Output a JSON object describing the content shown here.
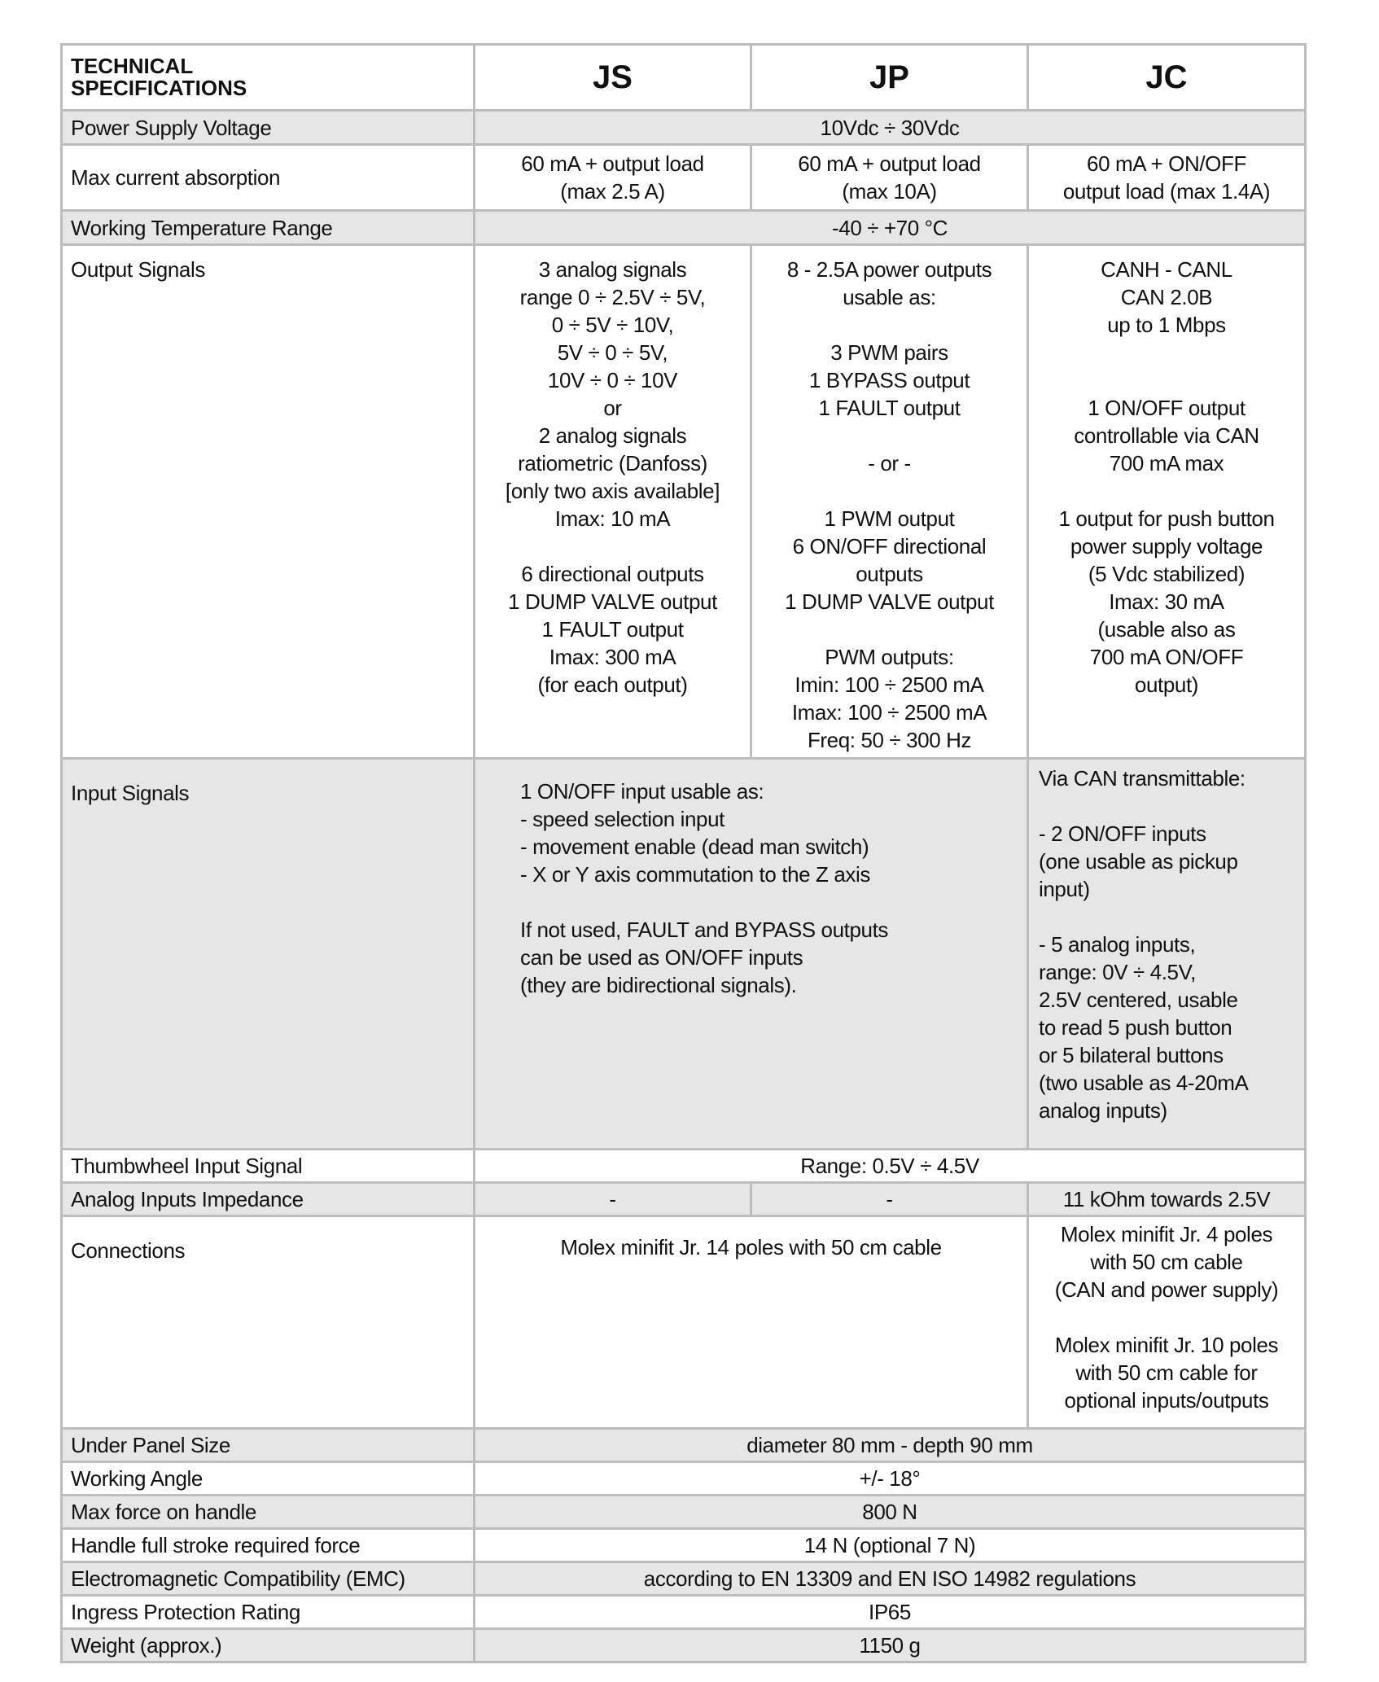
{
  "header": {
    "label": "TECHNICAL\nSPECIFICATIONS",
    "columns": [
      "JS",
      "JP",
      "JC"
    ]
  },
  "rows": {
    "power_supply": {
      "label": "Power Supply Voltage",
      "all": "10Vdc  ÷  30Vdc"
    },
    "max_current": {
      "label": "Max current absorption",
      "js": "60 mA + output load\n(max 2.5 A)",
      "jp": "60 mA + output load\n(max 10A)",
      "jc": "60 mA + ON/OFF\noutput load (max 1.4A)"
    },
    "temperature": {
      "label": "Working Temperature Range",
      "all": "-40 ÷ +70 °C"
    },
    "output_signals": {
      "label": "Output Signals",
      "js": "3 analog signals\nrange  0 ÷ 2.5V ÷ 5V,\n0 ÷ 5V ÷ 10V,\n5V ÷ 0 ÷ 5V,\n10V ÷ 0 ÷ 10V\nor\n2 analog signals\nratiometric (Danfoss)\n[only two axis available]\nImax: 10 mA\n\n6 directional outputs\n1 DUMP VALVE output\n1 FAULT output\nImax: 300 mA\n(for each output)",
      "jp": "8 - 2.5A power outputs\nusable as:\n\n3 PWM pairs\n1 BYPASS output\n1 FAULT output\n\n- or -\n\n1 PWM output\n6 ON/OFF directional\noutputs\n1 DUMP VALVE output\n\nPWM outputs:\nImin: 100 ÷ 2500 mA\nImax: 100 ÷ 2500 mA\nFreq: 50 ÷ 300 Hz",
      "jc": "CANH - CANL\nCAN 2.0B\nup to 1 Mbps\n\n\n1 ON/OFF output\ncontrollable via CAN\n700 mA max\n\n1 output for push button\npower supply voltage\n(5 Vdc stabilized)\nImax: 30 mA\n(usable also as\n700 mA ON/OFF\noutput)"
    },
    "input_signals": {
      "label": "Input Signals",
      "js_jp": "1 ON/OFF input usable as:\n- speed selection input\n- movement enable (dead man switch)\n- X or Y axis commutation to the Z axis\n\nIf not used, FAULT and BYPASS outputs\ncan be used as ON/OFF inputs\n(they are bidirectional signals).",
      "jc": "Via CAN transmittable:\n\n- 2 ON/OFF inputs\n(one usable as pickup\ninput)\n\n- 5 analog inputs,\nrange: 0V ÷ 4.5V,\n2.5V centered, usable\nto read 5 push button\nor 5 bilateral buttons\n(two usable as 4-20mA\nanalog inputs)"
    },
    "thumbwheel": {
      "label": "Thumbwheel Input Signal",
      "all": "Range: 0.5V ÷ 4.5V"
    },
    "impedance": {
      "label": "Analog Inputs Impedance",
      "js": "-",
      "jp": "-",
      "jc": "11 kOhm towards 2.5V"
    },
    "connections": {
      "label": "Connections",
      "js_jp": "Molex minifit Jr. 14 poles with 50 cm cable",
      "jc": "Molex minifit Jr. 4 poles\nwith 50 cm cable\n(CAN and power supply)\n\nMolex minifit Jr. 10 poles\nwith 50 cm cable for\noptional inputs/outputs"
    },
    "panel_size": {
      "label": "Under Panel Size",
      "all": "diameter 80 mm - depth 90 mm"
    },
    "working_angle": {
      "label": "Working Angle",
      "all": "+/- 18°"
    },
    "max_force": {
      "label": "Max force on handle",
      "all": "800 N"
    },
    "stroke_force": {
      "label": "Handle full stroke required force",
      "all": "14 N   (optional 7 N)"
    },
    "emc": {
      "label": "Electromagnetic Compatibility (EMC)",
      "all": "according to EN 13309 and EN ISO 14982 regulations"
    },
    "ip": {
      "label": "Ingress Protection Rating",
      "all": "IP65"
    },
    "weight": {
      "label": "Weight (approx.)",
      "all": "1150 g"
    }
  },
  "colors": {
    "border": "#bdbdbd",
    "shaded_row": "#e6e6e6"
  }
}
